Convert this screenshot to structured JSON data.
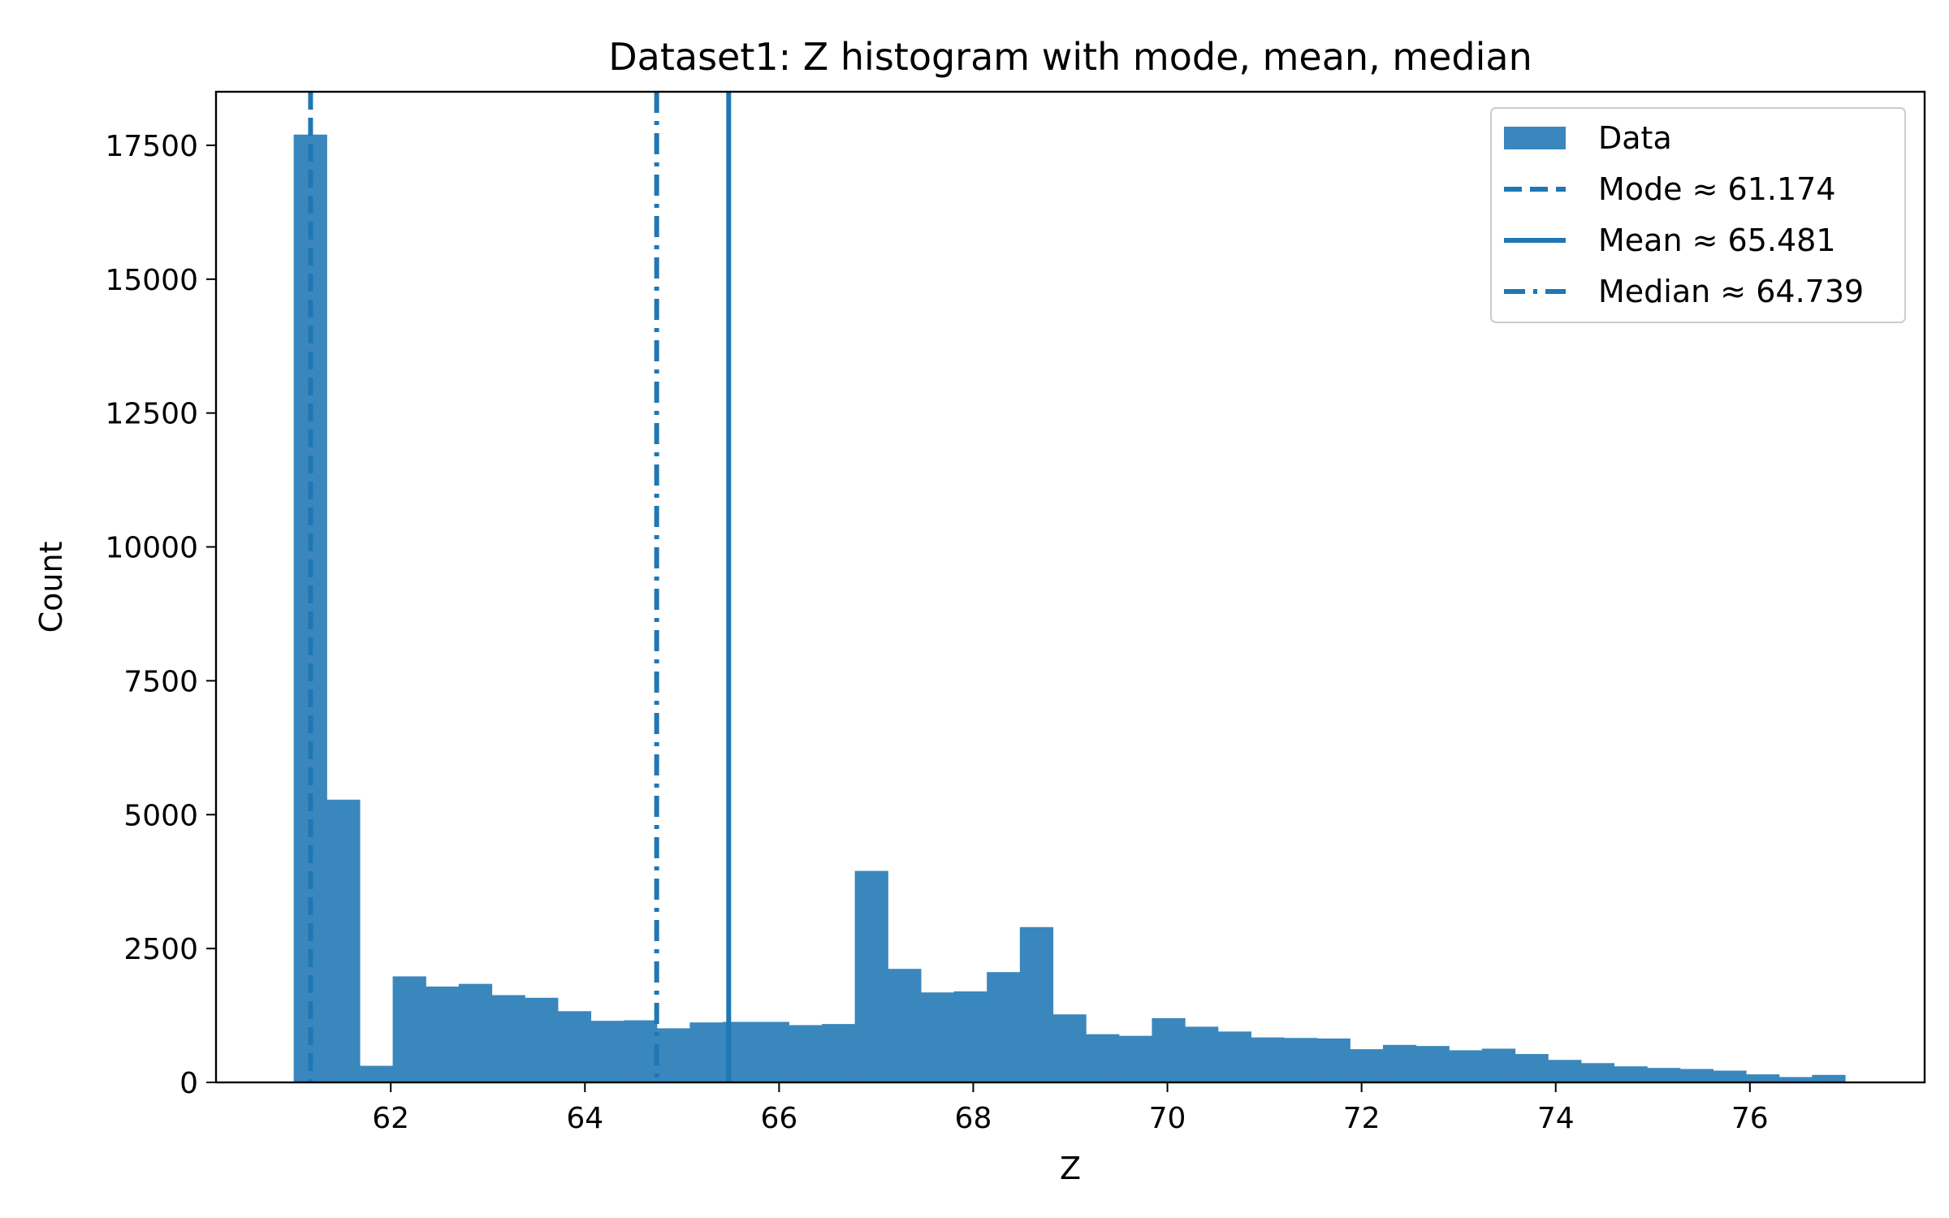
{
  "chart_data": {
    "type": "bar",
    "title": "Dataset1: Z histogram with mode, mean, median",
    "xlabel": "Z",
    "ylabel": "Count",
    "xlim": [
      60.2,
      77.8
    ],
    "ylim": [
      0,
      18500
    ],
    "xticks": [
      62,
      64,
      66,
      68,
      70,
      72,
      74,
      76
    ],
    "yticks": [
      0,
      2500,
      5000,
      7500,
      10000,
      12500,
      15000,
      17500
    ],
    "grid": false,
    "legend_position": "top-right",
    "bar_color": "#3a87bd",
    "line_color": "#1f77b4",
    "bins": {
      "start": 61.0,
      "width": 0.34,
      "counts": [
        17700,
        5280,
        310,
        1980,
        1790,
        1840,
        1630,
        1580,
        1330,
        1150,
        1160,
        1010,
        1120,
        1130,
        1130,
        1070,
        1090,
        3950,
        2120,
        1680,
        1700,
        2060,
        2900,
        1270,
        900,
        870,
        1200,
        1040,
        950,
        840,
        830,
        820,
        620,
        700,
        680,
        600,
        630,
        530,
        420,
        360,
        300,
        270,
        250,
        220,
        150,
        100,
        140
      ]
    },
    "stat_lines": [
      {
        "name": "Mode",
        "value": 61.174,
        "style": "dashed",
        "legend": "Mode ≈ 61.174"
      },
      {
        "name": "Mean",
        "value": 65.481,
        "style": "solid",
        "legend": "Mean ≈ 65.481"
      },
      {
        "name": "Median",
        "value": 64.739,
        "style": "dashdot",
        "legend": "Median ≈ 64.739"
      }
    ],
    "legend": [
      "Data",
      "Mode ≈ 61.174",
      "Mean ≈ 65.481",
      "Median ≈ 64.739"
    ]
  }
}
